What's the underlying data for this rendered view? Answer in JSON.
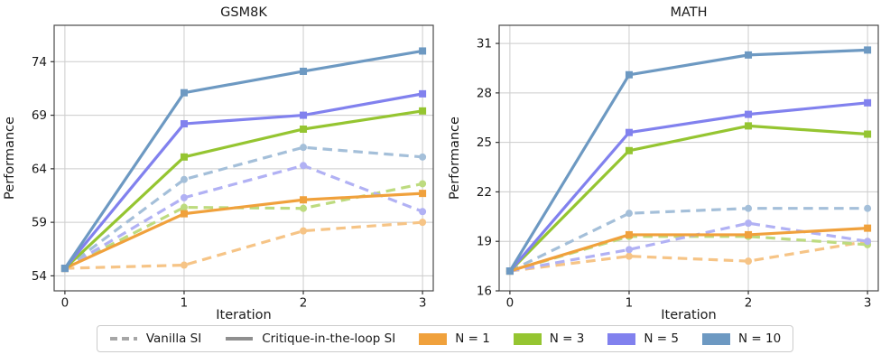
{
  "colors": {
    "grid": "#cccccc",
    "spine": "#4a4a4a",
    "tick": "#333333",
    "text": "#1a1a1a",
    "legend_dashed_gray": "#a6a6a6",
    "legend_solid_gray": "#8f8f8f",
    "n1_solid": "#f0a13c",
    "n3_solid": "#95c531",
    "n5_solid": "#8181ee",
    "n10_solid": "#6d99c2",
    "n1_dashed": "#f6c486",
    "n3_dashed": "#bddb7f",
    "n5_dashed": "#b1b1f4",
    "n10_dashed": "#a4bfd9"
  },
  "legend": {
    "items": [
      {
        "type": "line",
        "dash": true,
        "color": "#a6a6a6",
        "label": "Vanilla SI"
      },
      {
        "type": "line",
        "dash": false,
        "color": "#8f8f8f",
        "label": "Critique-in-the-loop SI"
      },
      {
        "type": "patch",
        "color": "#f0a13c",
        "label": "N = 1"
      },
      {
        "type": "patch",
        "color": "#95c531",
        "label": "N = 3"
      },
      {
        "type": "patch",
        "color": "#8181ee",
        "label": "N = 5"
      },
      {
        "type": "patch",
        "color": "#6d99c2",
        "label": "N = 10"
      }
    ]
  },
  "chart_data": [
    {
      "type": "line",
      "title": "GSM8K",
      "xlabel": "Iteration",
      "ylabel": "Performance",
      "grid": true,
      "x": [
        0,
        1,
        2,
        3
      ],
      "xticks": [
        0,
        1,
        2,
        3
      ],
      "yticks": [
        54,
        59,
        64,
        69,
        74
      ],
      "xlim": [
        -0.09,
        3.09
      ],
      "ylim": [
        52.6,
        77.4
      ],
      "series": [
        {
          "name": "Vanilla SI N = 1",
          "values": [
            54.7,
            55.0,
            58.2,
            59.0
          ],
          "color": "#f6c486",
          "dash": true,
          "marker": "circle"
        },
        {
          "name": "Vanilla SI N = 3",
          "values": [
            54.7,
            60.4,
            60.3,
            62.6
          ],
          "color": "#bddb7f",
          "dash": true,
          "marker": "circle"
        },
        {
          "name": "Vanilla SI N = 5",
          "values": [
            54.7,
            61.3,
            64.3,
            60.0
          ],
          "color": "#b1b1f4",
          "dash": true,
          "marker": "circle"
        },
        {
          "name": "Vanilla SI N = 10",
          "values": [
            54.7,
            63.0,
            66.0,
            65.1
          ],
          "color": "#a4bfd9",
          "dash": true,
          "marker": "circle"
        },
        {
          "name": "Critique-in-the-loop SI N = 1",
          "values": [
            54.7,
            59.8,
            61.1,
            61.7
          ],
          "color": "#f0a13c",
          "dash": false,
          "marker": "square"
        },
        {
          "name": "Critique-in-the-loop SI N = 3",
          "values": [
            54.7,
            65.1,
            67.7,
            69.4
          ],
          "color": "#95c531",
          "dash": false,
          "marker": "square"
        },
        {
          "name": "Critique-in-the-loop SI N = 5",
          "values": [
            54.7,
            68.2,
            69.0,
            71.0
          ],
          "color": "#8181ee",
          "dash": false,
          "marker": "square"
        },
        {
          "name": "Critique-in-the-loop SI N = 10",
          "values": [
            54.7,
            71.1,
            73.1,
            75.0
          ],
          "color": "#6d99c2",
          "dash": false,
          "marker": "square"
        }
      ]
    },
    {
      "type": "line",
      "title": "MATH",
      "xlabel": "Iteration",
      "ylabel": "Performance",
      "grid": true,
      "x": [
        0,
        1,
        2,
        3
      ],
      "xticks": [
        0,
        1,
        2,
        3
      ],
      "yticks": [
        16,
        19,
        22,
        25,
        28,
        31
      ],
      "xlim": [
        -0.09,
        3.09
      ],
      "ylim": [
        16.0,
        32.1
      ],
      "series": [
        {
          "name": "Vanilla SI N = 1",
          "values": [
            17.2,
            18.1,
            17.8,
            19.0
          ],
          "color": "#f6c486",
          "dash": true,
          "marker": "circle"
        },
        {
          "name": "Vanilla SI N = 3",
          "values": [
            17.2,
            19.3,
            19.3,
            18.8
          ],
          "color": "#bddb7f",
          "dash": true,
          "marker": "circle"
        },
        {
          "name": "Vanilla SI N = 5",
          "values": [
            17.2,
            18.5,
            20.1,
            19.0
          ],
          "color": "#b1b1f4",
          "dash": true,
          "marker": "circle"
        },
        {
          "name": "Vanilla SI N = 10",
          "values": [
            17.2,
            20.7,
            21.0,
            21.0
          ],
          "color": "#a4bfd9",
          "dash": true,
          "marker": "circle"
        },
        {
          "name": "Critique-in-the-loop SI N = 1",
          "values": [
            17.2,
            19.4,
            19.4,
            19.8
          ],
          "color": "#f0a13c",
          "dash": false,
          "marker": "square"
        },
        {
          "name": "Critique-in-the-loop SI N = 3",
          "values": [
            17.2,
            24.5,
            26.0,
            25.5
          ],
          "color": "#95c531",
          "dash": false,
          "marker": "square"
        },
        {
          "name": "Critique-in-the-loop SI N = 5",
          "values": [
            17.2,
            25.6,
            26.7,
            27.4
          ],
          "color": "#8181ee",
          "dash": false,
          "marker": "square"
        },
        {
          "name": "Critique-in-the-loop SI N = 10",
          "values": [
            17.2,
            29.1,
            30.3,
            30.6
          ],
          "color": "#6d99c2",
          "dash": false,
          "marker": "square"
        }
      ]
    }
  ]
}
